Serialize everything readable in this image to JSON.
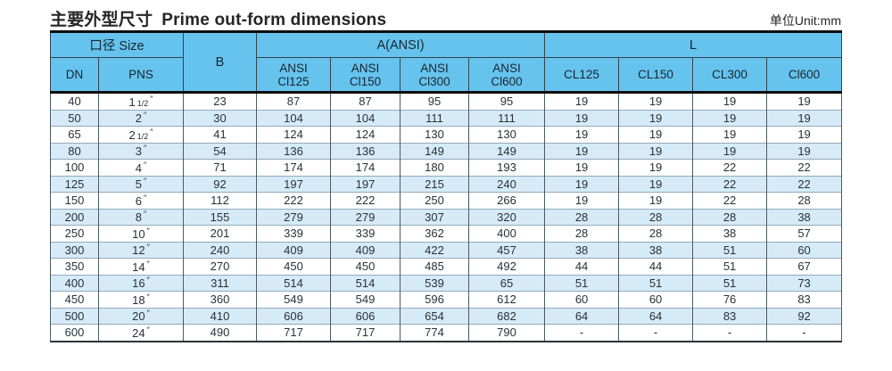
{
  "title": {
    "zh": "主要外型尺寸",
    "en": "Prime out-form dimensions"
  },
  "unit_label": "单位Unit:mm",
  "colors": {
    "header_bg": "#66c3ee",
    "row_alt_bg": "#d6eaf8",
    "row_bg": "#ffffff",
    "heavy_border": "#0d0d0d",
    "grid_border": "#4a5b64"
  },
  "table": {
    "inch_mark": "″",
    "header": {
      "size_group": "口径 Size",
      "dn": "DN",
      "pns": "PNS",
      "b": "B",
      "a_group": "A(ANSI)",
      "a_cols": [
        {
          "l1": "ANSI",
          "l2": "Cl125"
        },
        {
          "l1": "ANSI",
          "l2": "Cl150"
        },
        {
          "l1": "ANSI",
          "l2": "Cl300"
        },
        {
          "l1": "ANSI",
          "l2": "Cl600"
        }
      ],
      "l_group": "L",
      "l_cols": [
        "CL125",
        "CL150",
        "CL300",
        "Cl600"
      ]
    },
    "rows": [
      {
        "dn": "40",
        "pns": "1",
        "frac": "1/2",
        "b": "23",
        "a": [
          "87",
          "87",
          "95",
          "95"
        ],
        "l": [
          "19",
          "19",
          "19",
          "19"
        ]
      },
      {
        "dn": "50",
        "pns": "2",
        "frac": "",
        "b": "30",
        "a": [
          "104",
          "104",
          "111",
          "111"
        ],
        "l": [
          "19",
          "19",
          "19",
          "19"
        ]
      },
      {
        "dn": "65",
        "pns": "2",
        "frac": "1/2",
        "b": "41",
        "a": [
          "124",
          "124",
          "130",
          "130"
        ],
        "l": [
          "19",
          "19",
          "19",
          "19"
        ]
      },
      {
        "dn": "80",
        "pns": "3",
        "frac": "",
        "b": "54",
        "a": [
          "136",
          "136",
          "149",
          "149"
        ],
        "l": [
          "19",
          "19",
          "19",
          "19"
        ]
      },
      {
        "dn": "100",
        "pns": "4",
        "frac": "",
        "b": "71",
        "a": [
          "174",
          "174",
          "180",
          "193"
        ],
        "l": [
          "19",
          "19",
          "22",
          "22"
        ]
      },
      {
        "dn": "125",
        "pns": "5",
        "frac": "",
        "b": "92",
        "a": [
          "197",
          "197",
          "215",
          "240"
        ],
        "l": [
          "19",
          "19",
          "22",
          "22"
        ]
      },
      {
        "dn": "150",
        "pns": "6",
        "frac": "",
        "b": "112",
        "a": [
          "222",
          "222",
          "250",
          "266"
        ],
        "l": [
          "19",
          "19",
          "22",
          "28"
        ]
      },
      {
        "dn": "200",
        "pns": "8",
        "frac": "",
        "b": "155",
        "a": [
          "279",
          "279",
          "307",
          "320"
        ],
        "l": [
          "28",
          "28",
          "28",
          "38"
        ]
      },
      {
        "dn": "250",
        "pns": "10",
        "frac": "",
        "b": "201",
        "a": [
          "339",
          "339",
          "362",
          "400"
        ],
        "l": [
          "28",
          "28",
          "38",
          "57"
        ]
      },
      {
        "dn": "300",
        "pns": "12",
        "frac": "",
        "b": "240",
        "a": [
          "409",
          "409",
          "422",
          "457"
        ],
        "l": [
          "38",
          "38",
          "51",
          "60"
        ]
      },
      {
        "dn": "350",
        "pns": "14",
        "frac": "",
        "b": "270",
        "a": [
          "450",
          "450",
          "485",
          "492"
        ],
        "l": [
          "44",
          "44",
          "51",
          "67"
        ]
      },
      {
        "dn": "400",
        "pns": "16",
        "frac": "",
        "b": "311",
        "a": [
          "514",
          "514",
          "539",
          "65"
        ],
        "l": [
          "51",
          "51",
          "51",
          "73"
        ]
      },
      {
        "dn": "450",
        "pns": "18",
        "frac": "",
        "b": "360",
        "a": [
          "549",
          "549",
          "596",
          "612"
        ],
        "l": [
          "60",
          "60",
          "76",
          "83"
        ]
      },
      {
        "dn": "500",
        "pns": "20",
        "frac": "",
        "b": "410",
        "a": [
          "606",
          "606",
          "654",
          "682"
        ],
        "l": [
          "64",
          "64",
          "83",
          "92"
        ]
      },
      {
        "dn": "600",
        "pns": "24",
        "frac": "",
        "b": "490",
        "a": [
          "717",
          "717",
          "774",
          "790"
        ],
        "l": [
          "-",
          "-",
          "-",
          "-"
        ]
      }
    ]
  }
}
